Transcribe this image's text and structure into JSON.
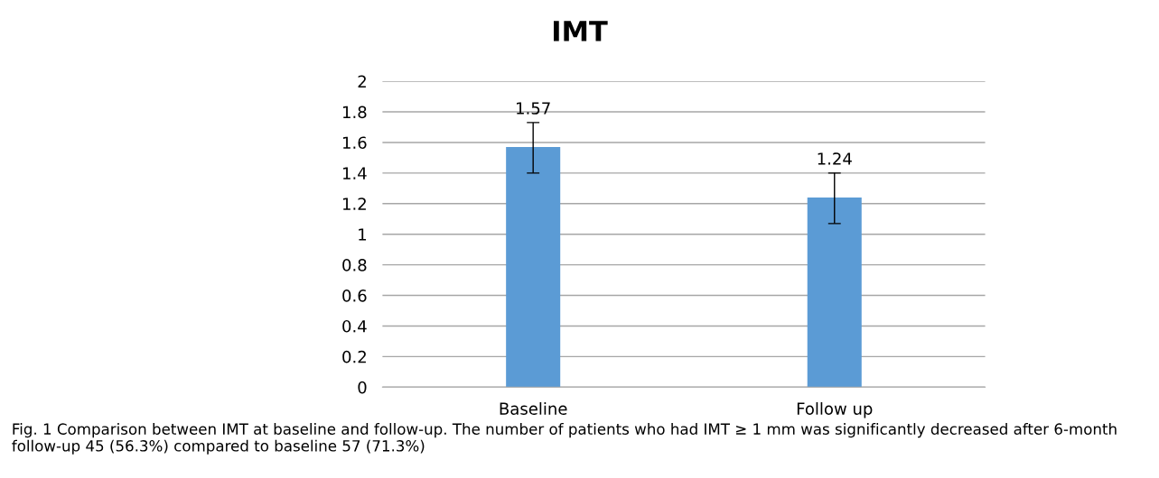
{
  "chart_data": {
    "type": "bar",
    "title": "IMT",
    "categories": [
      "Baseline",
      "Follow up"
    ],
    "values": [
      1.57,
      1.24
    ],
    "errors": [
      [
        1.4,
        1.73
      ],
      [
        1.07,
        1.4
      ]
    ],
    "color": "#5b9bd5",
    "data_labels": true,
    "ylim": [
      0,
      2
    ],
    "yticks": [
      0,
      0.2,
      0.4,
      0.6,
      0.8,
      1,
      1.2,
      1.4,
      1.6,
      1.8,
      2
    ],
    "grid": "y",
    "annotations": [
      "Fig. 1 Comparison between IMT at baseline and follow-up. The number of patients who had IMT ≥ 1 mm was significantly decreased after 6-month follow-up 45 (56.3%) compared to baseline 57 (71.3%)"
    ]
  }
}
